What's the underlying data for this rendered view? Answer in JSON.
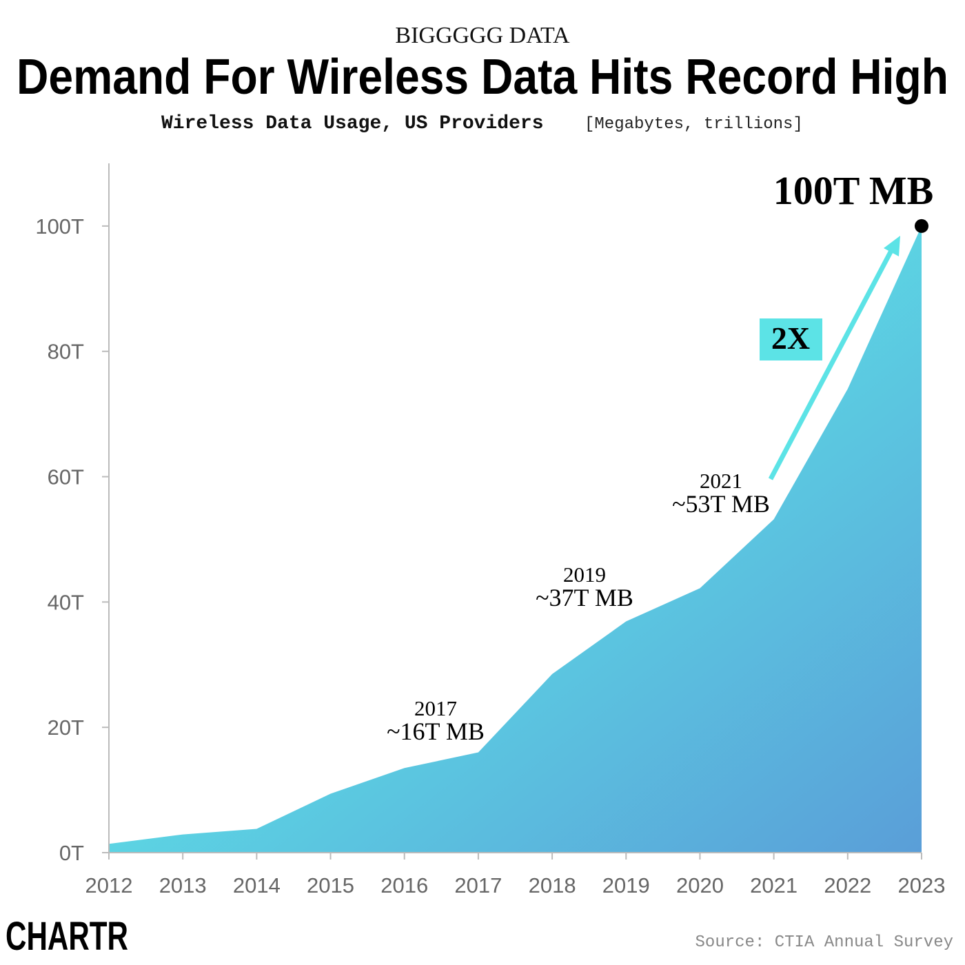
{
  "chart_data": {
    "type": "area",
    "kicker": "BIGGGGG DATA",
    "title": "Demand For Wireless Data Hits Record High",
    "subtitle": "Wireless Data Usage, US Providers",
    "unit": "[Megabytes, trillions]",
    "x": [
      2012,
      2013,
      2014,
      2015,
      2016,
      2017,
      2018,
      2019,
      2020,
      2021,
      2022,
      2023
    ],
    "values": [
      1.4,
      2.9,
      3.8,
      9.4,
      13.5,
      16.0,
      28.5,
      36.9,
      42.2,
      53.2,
      74.0,
      100
    ],
    "colors": [
      "#5ce3e6",
      "#5a9ed8"
    ],
    "xlim": [
      2012,
      2023
    ],
    "xticks": [
      2012,
      2013,
      2014,
      2015,
      2016,
      2017,
      2018,
      2019,
      2020,
      2021,
      2022,
      2023
    ],
    "ylim": [
      0,
      110
    ],
    "yticks": [
      {
        "value": 0,
        "label": "0T"
      },
      {
        "value": 20,
        "label": "20T"
      },
      {
        "value": 40,
        "label": "40T"
      },
      {
        "value": 60,
        "label": "60T"
      },
      {
        "value": 80,
        "label": "80T"
      },
      {
        "value": 100,
        "label": "100T"
      }
    ],
    "annotations": [
      {
        "lines": [
          "2017",
          "~16T MB"
        ]
      },
      {
        "lines": [
          "2019",
          "~37T MB"
        ]
      },
      {
        "lines": [
          "2021",
          "~53T MB"
        ]
      }
    ],
    "end_label": "100T MB",
    "growth_label": "2X",
    "source": "Source: CTIA Annual Survey",
    "brand": "CHARTR"
  }
}
